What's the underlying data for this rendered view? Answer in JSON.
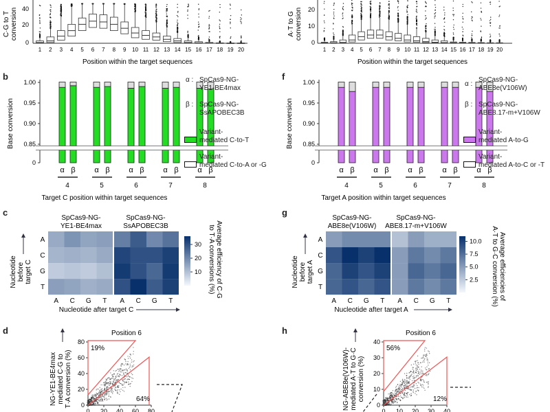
{
  "panel_letters": {
    "b": "b",
    "c": "c",
    "d": "d",
    "f": "f",
    "g": "g",
    "h": "h"
  },
  "top_left": {
    "ylabel_line1": "C·G to T",
    "ylabel_line2": "conversion",
    "yticks": [
      "40",
      "20",
      "0"
    ],
    "xlabel": "Position within the target sequences"
  },
  "top_right": {
    "ylabel_line1": "A·T to G",
    "ylabel_line2": "conversion",
    "yticks": [
      "20",
      "10",
      "0"
    ],
    "xlabel": "Position within the target sequences"
  },
  "positions": [
    "1",
    "2",
    "3",
    "4",
    "5",
    "6",
    "7",
    "8",
    "9",
    "10",
    "11",
    "12",
    "13",
    "14",
    "15",
    "16",
    "17",
    "18",
    "19",
    "20"
  ],
  "box_left": {
    "medians": [
      1,
      3,
      9,
      16,
      24,
      28,
      27,
      24,
      19,
      13,
      10,
      8,
      5,
      3,
      1,
      0.5,
      0.3,
      0.2,
      0.1,
      0.1
    ],
    "q1": [
      0.3,
      1,
      4,
      9,
      16,
      20,
      19,
      16,
      12,
      7,
      5,
      4,
      2,
      1,
      0.3,
      0.2,
      0.1,
      0.1,
      0,
      0
    ],
    "q3": [
      3,
      8,
      16,
      24,
      32,
      37,
      36,
      33,
      27,
      20,
      16,
      13,
      9,
      6,
      3,
      2,
      1,
      0.5,
      0.3,
      0.3
    ]
  },
  "box_right": {
    "medians": [
      0.2,
      0.3,
      0.5,
      2,
      4,
      5,
      5,
      4,
      3,
      2,
      1.5,
      1,
      0.6,
      0.4,
      0.3,
      0.2,
      0.2,
      0.2,
      0.1,
      0.1
    ],
    "q1": [
      0,
      0.1,
      0.2,
      0.8,
      2,
      3,
      3,
      2,
      1.5,
      0.8,
      0.6,
      0.4,
      0.2,
      0.1,
      0.1,
      0,
      0,
      0,
      0,
      0
    ],
    "q3": [
      0.6,
      1,
      2,
      5,
      7,
      8,
      8,
      7,
      6,
      5,
      4,
      3,
      2,
      1.5,
      0.8,
      0.6,
      0.5,
      0.4,
      0.3,
      0.3
    ]
  },
  "panel_b": {
    "ylabel": "Base conversion",
    "yticks": [
      "1.00",
      "0.95",
      "0.90",
      "0.85",
      "0"
    ],
    "xlabel": "Target C position within target sequences",
    "groups": [
      "4",
      "5",
      "6",
      "7",
      "8"
    ],
    "greek": [
      "α",
      "β"
    ],
    "legend": {
      "alpha_sym": "α :",
      "alpha_l1": "SpCas9-NG-",
      "alpha_l2": "YE1-BE4max",
      "beta_sym": "β :",
      "beta_l1": "SpCas9-NG-",
      "beta_l2": "SsAPOBEC3B",
      "var1_l1": "Variant-",
      "var1_l2": "mediated C-to-T",
      "var2_l1": "Variant-",
      "var2_l2": "mediated C-to-A or -G"
    },
    "main_color": "#22dd22",
    "values": [
      0.988,
      0.992,
      0.988,
      0.99,
      0.986,
      0.99,
      0.986,
      0.988,
      0.986,
      0.984
    ]
  },
  "panel_f": {
    "ylabel": "Base conversion",
    "yticks": [
      "1.00",
      "0.95",
      "0.90",
      "0.85",
      "0"
    ],
    "xlabel": "Target A position within target sequences",
    "groups": [
      "4",
      "5",
      "6",
      "7",
      "8"
    ],
    "greek": [
      "α",
      "β"
    ],
    "legend": {
      "alpha_sym": "α :",
      "alpha_l1": "SpCas9-NG-",
      "alpha_l2": "ABE8e(V106W)",
      "beta_sym": "β :",
      "beta_l1": "SpCas9-NG-",
      "beta_l2": "ABE8.17-m+V106W",
      "var1_l1": "Variant-",
      "var1_l2": "mediated A-to-G",
      "var2_l1": "Variant-",
      "var2_l2": "mediated A-to-C or -T"
    },
    "main_color": "#cc77ee",
    "values": [
      0.988,
      0.978,
      0.988,
      0.988,
      0.988,
      0.988,
      0.988,
      0.988,
      0.988,
      0.978
    ]
  },
  "panel_c": {
    "title_left_l1": "SpCas9-NG-",
    "title_left_l2": "YE1-BE4max",
    "title_right_l1": "SpCas9-NG-",
    "title_right_l2": "SsAPOBEC3B",
    "ylabel_l1": "Nucleotide",
    "ylabel_l2": "before",
    "ylabel_l3": "target C",
    "xlabel": "Nucleotide after target C",
    "rows": [
      "A",
      "C",
      "G",
      "T"
    ],
    "cols": [
      "A",
      "C",
      "G",
      "T"
    ],
    "cbar_label_l1": "Average efficiency of C·G",
    "cbar_label_l2": "to T·A conversions (%)",
    "cbar_ticks": [
      "30",
      "20",
      "10"
    ],
    "left": [
      [
        14,
        18,
        15,
        16
      ],
      [
        12,
        13,
        12,
        14
      ],
      [
        8,
        9,
        8,
        10
      ],
      [
        16,
        15,
        13,
        14
      ]
    ],
    "right": [
      [
        22,
        28,
        20,
        24
      ],
      [
        32,
        30,
        30,
        33
      ],
      [
        34,
        30,
        26,
        34
      ],
      [
        30,
        36,
        28,
        33
      ]
    ]
  },
  "panel_g": {
    "title_left_l1": "SpCas9-NG-",
    "title_left_l2": "ABE8e(V106W)",
    "title_right_l1": "SpCas9-NG-",
    "title_right_l2": "ABE8.17-m+V106W",
    "ylabel_l1": "Nucleotide",
    "ylabel_l2": "before",
    "ylabel_l3": "target A",
    "xlabel": "Nucleotide after target A",
    "rows": [
      "A",
      "C",
      "G",
      "T"
    ],
    "cols": [
      "A",
      "C",
      "G",
      "T"
    ],
    "cbar_label_l1": "Average efficiencies of",
    "cbar_label_l2": "A·T to G·C conversion (%)",
    "cbar_ticks": [
      "10.0",
      "7.5",
      "5.0",
      "2.5"
    ],
    "left": [
      [
        5,
        6,
        6,
        6
      ],
      [
        9,
        11,
        10,
        11
      ],
      [
        8,
        10,
        9,
        10
      ],
      [
        8,
        9,
        8,
        9
      ]
    ],
    "right": [
      [
        3,
        5,
        4,
        4
      ],
      [
        5,
        7,
        6,
        7
      ],
      [
        5,
        8,
        7,
        8
      ],
      [
        5,
        7,
        6,
        7
      ]
    ]
  },
  "panel_d": {
    "title": "Position 6",
    "ylabel_l1": "NG-YE1-BE4max",
    "ylabel_l2": "mediated C·G to",
    "ylabel_l3": "T·A conversion (%)",
    "xticks": [
      "0",
      "20",
      "40",
      "60",
      "80"
    ],
    "yticks": [
      "80",
      "60",
      "40",
      "20",
      "0"
    ],
    "pct_top": "19%",
    "pct_bottom": "64%"
  },
  "panel_h": {
    "title": "Position 6",
    "ylabel_l1": "NG-ABE8e(V106W)-",
    "ylabel_l2": "mediated A·T to G·C",
    "ylabel_l3": "conversion (%)",
    "xticks": [
      "0",
      "10",
      "20",
      "30",
      "40"
    ],
    "yticks": [
      "40",
      "30",
      "20",
      "10",
      "0"
    ],
    "pct_top": "56%",
    "pct_bottom": "12%"
  }
}
